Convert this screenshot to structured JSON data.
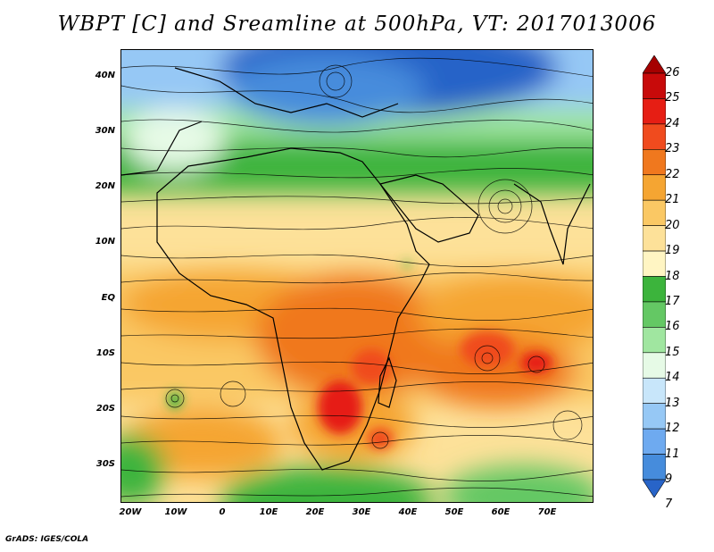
{
  "title": "WBPT [C] and Sreamline at 500hPa, VT: 2017013006",
  "footer": "GrADS: IGES/COLA",
  "map": {
    "lat_labels": [
      "40N",
      "30N",
      "20N",
      "10N",
      "EQ",
      "10S",
      "20S",
      "30S"
    ],
    "lon_labels": [
      "20W",
      "10W",
      "0",
      "10E",
      "20E",
      "30E",
      "40E",
      "50E",
      "60E",
      "70E"
    ],
    "lon_range": [
      -22,
      80
    ],
    "lat_range": [
      -37,
      45
    ]
  },
  "colorbar": {
    "labels": [
      "26",
      "25",
      "24",
      "23",
      "22",
      "21",
      "20",
      "19",
      "18",
      "17",
      "16",
      "15",
      "14",
      "13",
      "12",
      "11",
      "9",
      "7"
    ],
    "colors": [
      "#a50000",
      "#c80a0a",
      "#e61e14",
      "#f04b1e",
      "#f0781e",
      "#f5a532",
      "#fac864",
      "#fde199",
      "#fff5c3",
      "#3cb43c",
      "#64c864",
      "#a0e6a0",
      "#e6fae6",
      "#c8e6fa",
      "#96c8f5",
      "#6eaaf0",
      "#468cdc",
      "#2864c8"
    ]
  }
}
